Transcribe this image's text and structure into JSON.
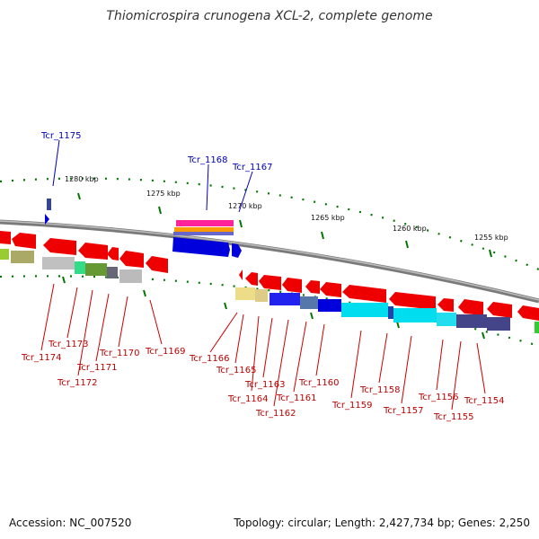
{
  "title": "Thiomicrospira crunogena XCL-2, complete genome",
  "footer": {
    "accession": "Accession: NC_007520",
    "topology": "Topology: circular; Length: 2,427,734 bp; Genes: 2,250"
  },
  "scale_labels": [
    "1280 kbp",
    "1275 kbp",
    "1270 kbp",
    "1265 kbp",
    "1260 kbp",
    "1255 kbp"
  ],
  "colors": {
    "forward_label": "#0000bb",
    "reverse_label": "#bb0000",
    "backbone": "#888888",
    "tick": "#007700",
    "forward_gene": "#0000ee",
    "reverse_gene": "#ee0000"
  },
  "forward_genes": [
    "Tcr_1175",
    "Tcr_1168",
    "Tcr_1167"
  ],
  "reverse_genes": [
    "Tcr_1174",
    "Tcr_1173",
    "Tcr_1172",
    "Tcr_1171",
    "Tcr_1170",
    "Tcr_1169",
    "Tcr_1166",
    "Tcr_1165",
    "Tcr_1164",
    "Tcr_1163",
    "Tcr_1162",
    "Tcr_1161",
    "Tcr_1160",
    "Tcr_1159",
    "Tcr_1158",
    "Tcr_1157",
    "Tcr_1156",
    "Tcr_1155",
    "Tcr_1154"
  ]
}
